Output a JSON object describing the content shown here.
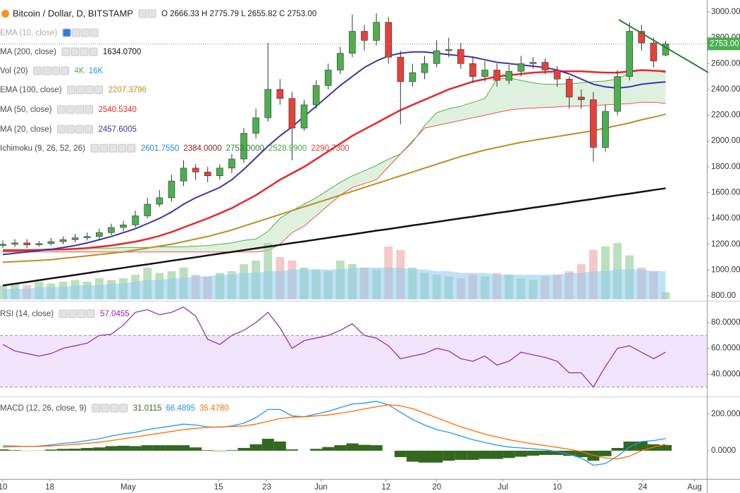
{
  "chart_data": {
    "type": "candlestick",
    "title": "Bitcoin / Dollar, D, BITSTAMP",
    "ohlc_readout": "O 2666.33 H 2775.79 L 2655.82 C 2753.00",
    "disabled_indicator": "EMA (10, close)",
    "xticks": [
      {
        "value": 0,
        "label": "10"
      },
      {
        "value": 3.9,
        "label": "18"
      },
      {
        "value": 10.4,
        "label": "May"
      },
      {
        "value": 17.9,
        "label": "15"
      },
      {
        "value": 21.9,
        "label": "23"
      },
      {
        "value": 26.4,
        "label": "Jun"
      },
      {
        "value": 31.8,
        "label": "12"
      },
      {
        "value": 36,
        "label": "20"
      },
      {
        "value": 41.5,
        "label": "Jul"
      },
      {
        "value": 46,
        "label": "10"
      },
      {
        "value": 53.1,
        "label": "24"
      },
      {
        "value": 57.4,
        "label": "Aug"
      }
    ],
    "ylim": [
      773,
      3082
    ],
    "yticks": [
      {
        "value": 800,
        "label": "800.00"
      },
      {
        "value": 1000,
        "label": "1000.00"
      },
      {
        "value": 1200,
        "label": "1200.00"
      },
      {
        "value": 1400,
        "label": "1400.00"
      },
      {
        "value": 1600,
        "label": "1600.00"
      },
      {
        "value": 1800,
        "label": "1800.00"
      },
      {
        "value": 2000,
        "label": "2000.00"
      },
      {
        "value": 2200,
        "label": "2200.00"
      },
      {
        "value": 2400,
        "label": "2400.00"
      },
      {
        "value": 2600,
        "label": "2600.00"
      },
      {
        "value": 2800,
        "label": "2800.00"
      },
      {
        "value": 3000,
        "label": "3000.00"
      }
    ],
    "grid": false,
    "up_color": "#4caf50",
    "down_color": "#e5413b",
    "candles": {
      "open": [
        1190,
        1200,
        1210,
        1195,
        1205,
        1220,
        1235,
        1250,
        1260,
        1290,
        1330,
        1350,
        1420,
        1510,
        1560,
        1690,
        1790,
        1760,
        1730,
        1790,
        1860,
        2060,
        2180,
        2400,
        2330,
        2100,
        2280,
        2430,
        2550,
        2680,
        2850,
        2780,
        2920,
        2650,
        2460,
        2530,
        2600,
        2700,
        2710,
        2600,
        2500,
        2550,
        2470,
        2540,
        2600,
        2610,
        2550,
        2480,
        2340,
        2320,
        1950,
        2230,
        2500,
        2850,
        2760,
        2666.33
      ],
      "high": [
        1230,
        1240,
        1240,
        1225,
        1250,
        1260,
        1280,
        1290,
        1320,
        1360,
        1380,
        1460,
        1560,
        1620,
        1740,
        1850,
        1820,
        1800,
        1820,
        1900,
        2100,
        2250,
        2760,
        2480,
        2380,
        2320,
        2470,
        2600,
        2730,
        2980,
        2900,
        2990,
        2960,
        2700,
        2600,
        2660,
        2780,
        2800,
        2760,
        2650,
        2620,
        2600,
        2590,
        2660,
        2650,
        2640,
        2580,
        2500,
        2400,
        2380,
        2280,
        2550,
        2920,
        2900,
        2800,
        2775.79
      ],
      "low": [
        1170,
        1180,
        1170,
        1180,
        1190,
        1200,
        1215,
        1230,
        1240,
        1270,
        1300,
        1330,
        1400,
        1490,
        1530,
        1650,
        1700,
        1680,
        1700,
        1750,
        1830,
        2020,
        2150,
        2280,
        1850,
        2080,
        2250,
        2400,
        2520,
        2650,
        2700,
        2740,
        2600,
        2130,
        2420,
        2480,
        2570,
        2650,
        2560,
        2450,
        2460,
        2420,
        2440,
        2500,
        2560,
        2520,
        2420,
        2250,
        2250,
        1840,
        1920,
        2200,
        2470,
        2700,
        2570,
        2655.82
      ],
      "close": [
        1200,
        1210,
        1195,
        1205,
        1220,
        1235,
        1250,
        1260,
        1290,
        1330,
        1350,
        1420,
        1510,
        1560,
        1690,
        1790,
        1760,
        1730,
        1790,
        1860,
        2060,
        2180,
        2400,
        2330,
        2100,
        2280,
        2430,
        2550,
        2680,
        2850,
        2780,
        2920,
        2650,
        2460,
        2530,
        2600,
        2700,
        2710,
        2600,
        2500,
        2550,
        2470,
        2540,
        2600,
        2610,
        2550,
        2480,
        2340,
        2320,
        1950,
        2230,
        2500,
        2850,
        2760,
        2620,
        2753.0
      ]
    },
    "last_price": {
      "value": 2753,
      "label": "2753.00",
      "color": "#4caf50"
    },
    "series": [
      {
        "name": "MA (200, close)",
        "color": "#111111",
        "width": 2.5,
        "readout": "1634.0700",
        "values": [
          880,
          894,
          907,
          921,
          935,
          948,
          962,
          976,
          990,
          1003,
          1017,
          1031,
          1044,
          1058,
          1072,
          1085,
          1099,
          1113,
          1127,
          1140,
          1154,
          1168,
          1181,
          1195,
          1209,
          1222,
          1236,
          1250,
          1264,
          1277,
          1291,
          1305,
          1318,
          1332,
          1346,
          1359,
          1373,
          1387,
          1401,
          1414,
          1428,
          1442,
          1455,
          1469,
          1483,
          1496,
          1510,
          1524,
          1538,
          1551,
          1565,
          1579,
          1592,
          1606,
          1620,
          1634
        ]
      },
      {
        "name": "EMA (100, close)",
        "color": "#c08a1e",
        "width": 2,
        "readout": "2207.3796",
        "values": [
          1060,
          1065,
          1070,
          1075,
          1080,
          1090,
          1100,
          1110,
          1120,
          1130,
          1140,
          1155,
          1170,
          1185,
          1200,
          1220,
          1240,
          1260,
          1285,
          1310,
          1340,
          1370,
          1400,
          1430,
          1460,
          1490,
          1520,
          1550,
          1580,
          1610,
          1640,
          1670,
          1700,
          1730,
          1760,
          1790,
          1820,
          1850,
          1880,
          1905,
          1930,
          1950,
          1970,
          1990,
          2005,
          2020,
          2035,
          2050,
          2065,
          2080,
          2100,
          2120,
          2140,
          2165,
          2185,
          2207
        ]
      },
      {
        "name": "MA (50, close)",
        "color": "#e8262b",
        "width": 2.5,
        "readout": "2540.5340",
        "values": [
          1150,
          1150,
          1152,
          1155,
          1158,
          1160,
          1165,
          1170,
          1180,
          1190,
          1205,
          1220,
          1240,
          1265,
          1295,
          1330,
          1365,
          1400,
          1440,
          1480,
          1530,
          1580,
          1640,
          1700,
          1750,
          1800,
          1860,
          1920,
          1980,
          2040,
          2090,
          2140,
          2190,
          2240,
          2280,
          2320,
          2360,
          2400,
          2430,
          2460,
          2480,
          2500,
          2510,
          2520,
          2530,
          2535,
          2540,
          2540,
          2540,
          2535,
          2530,
          2530,
          2540,
          2550,
          2545,
          2540
        ]
      },
      {
        "name": "MA (20, close)",
        "color": "#3b35a8",
        "width": 2,
        "readout": "2457.6005",
        "values": [
          1120,
          1130,
          1140,
          1150,
          1160,
          1175,
          1190,
          1210,
          1235,
          1260,
          1290,
          1320,
          1360,
          1400,
          1450,
          1510,
          1560,
          1600,
          1640,
          1700,
          1780,
          1870,
          1960,
          2040,
          2110,
          2190,
          2270,
          2350,
          2430,
          2500,
          2570,
          2620,
          2660,
          2680,
          2690,
          2690,
          2680,
          2670,
          2660,
          2650,
          2630,
          2610,
          2600,
          2590,
          2580,
          2570,
          2550,
          2520,
          2480,
          2440,
          2420,
          2410,
          2420,
          2440,
          2450,
          2458
        ]
      }
    ],
    "volume": {
      "name": "Vol (20)",
      "readouts": [
        "4K",
        "16K"
      ],
      "readout_colors": [
        "#4caf50",
        "#2196f3"
      ],
      "up_color": "#a5d6a7",
      "down_color": "#efb8b5",
      "ma_color": "#8ccaf0",
      "values": [
        8,
        9,
        8,
        10,
        9,
        10,
        11,
        10,
        12,
        11,
        12,
        14,
        18,
        15,
        16,
        18,
        14,
        13,
        15,
        16,
        20,
        22,
        32,
        24,
        22,
        18,
        17,
        16,
        22,
        20,
        18,
        17,
        30,
        28,
        18,
        15,
        14,
        13,
        12,
        14,
        13,
        15,
        14,
        12,
        11,
        13,
        14,
        16,
        20,
        28,
        30,
        32,
        25,
        18,
        16,
        4
      ],
      "ma": [
        6,
        6,
        6,
        7,
        7,
        7,
        8,
        8,
        8,
        9,
        9,
        10,
        11,
        11,
        12,
        12,
        13,
        13,
        14,
        14,
        15,
        15,
        16,
        16,
        17,
        17,
        17,
        17,
        17,
        18,
        18,
        18,
        18,
        18,
        17,
        17,
        16,
        16,
        15,
        15,
        15,
        14,
        14,
        14,
        14,
        14,
        14,
        15,
        15,
        16,
        16,
        17,
        17,
        17,
        16,
        16
      ]
    },
    "ichimoku": {
      "name": "Ichimoku (9, 26, 52, 26)",
      "readouts": [
        "2601.7550",
        "2384.0000",
        "2753.0000",
        "2528.9900",
        "2290.7300"
      ],
      "readout_colors": [
        "#1e88e5",
        "#8e1b1b",
        "#2e7d32",
        "#43a047",
        "#e53935"
      ],
      "span_a_color": "#4caf50",
      "span_b_color": "#ef5350",
      "cloud_color": "#b9dfb5",
      "span_a": [
        1160,
        1160,
        1160,
        1160,
        1165,
        1165,
        1165,
        1170,
        1170,
        1170,
        1175,
        1175,
        1175,
        1180,
        1180,
        1180,
        1185,
        1190,
        1200,
        1210,
        1230,
        1240,
        1300,
        1400,
        1460,
        1510,
        1560,
        1620,
        1680,
        1730,
        1770,
        1810,
        1860,
        1900,
        1990,
        2120,
        2220,
        2250,
        2270,
        2300,
        2330,
        2480,
        2490,
        2470,
        2450,
        2440,
        2440,
        2445,
        2450,
        2460,
        2465,
        2480,
        2530,
        2550,
        2550,
        2529
      ],
      "span_b": [
        1140,
        1140,
        1140,
        1140,
        1140,
        1140,
        1140,
        1140,
        1140,
        1140,
        1140,
        1140,
        1140,
        1140,
        1140,
        1140,
        1140,
        1140,
        1140,
        1140,
        1140,
        1140,
        1150,
        1200,
        1290,
        1340,
        1420,
        1500,
        1580,
        1640,
        1670,
        1700,
        1800,
        1900,
        2000,
        2100,
        2120,
        2140,
        2160,
        2180,
        2200,
        2220,
        2240,
        2250,
        2255,
        2260,
        2265,
        2270,
        2270,
        2275,
        2280,
        2285,
        2290,
        2300,
        2300,
        2291
      ]
    },
    "rsi": {
      "name": "RSI (14, close)",
      "readout": "57.0455",
      "color": "#8e24aa",
      "band_color": "#f1e4fb",
      "ylim": [
        23.2,
        95.3
      ],
      "yticks": [
        {
          "value": 40,
          "label": "40.0000"
        },
        {
          "value": 60,
          "label": "60.0000"
        },
        {
          "value": 80,
          "label": "80.0000"
        }
      ],
      "bands": [
        30,
        70
      ],
      "values": [
        63,
        58,
        56,
        54,
        56,
        60,
        62,
        64,
        70,
        71,
        78,
        88,
        90,
        86,
        88,
        92,
        85,
        67,
        63,
        70,
        74,
        80,
        88,
        76,
        60,
        66,
        68,
        70,
        74,
        79,
        70,
        68,
        62,
        52,
        54,
        56,
        60,
        58,
        52,
        50,
        54,
        47,
        50,
        57,
        55,
        53,
        50,
        41,
        41,
        30,
        46,
        60,
        62,
        57,
        52,
        57.0455
      ]
    },
    "macd": {
      "name": "MACD (12, 26, close, 9)",
      "readouts": [
        "31.0115",
        "66.4895",
        "35.4780"
      ],
      "hist_color": "#33691e",
      "macd_color": "#2196f3",
      "signal_color": "#ff6d00",
      "ylim": [
        -154,
        288
      ],
      "yticks": [
        {
          "value": 0,
          "label": "0.0000"
        },
        {
          "value": 200,
          "label": "200.0000"
        }
      ],
      "histogram": [
        7,
        3,
        -1,
        1,
        6,
        10,
        11,
        15,
        18,
        25,
        27,
        25,
        30,
        30,
        30,
        30,
        18,
        3,
        -2,
        3,
        15,
        35,
        65,
        50,
        7,
        0,
        10,
        20,
        30,
        40,
        32,
        30,
        0,
        -35,
        -60,
        -65,
        -65,
        -55,
        -50,
        -50,
        -45,
        -45,
        -40,
        -33,
        -27,
        -23,
        -23,
        -28,
        -35,
        -55,
        -30,
        15,
        50,
        50,
        35,
        31.0115
      ],
      "macd": [
        27,
        25,
        22,
        25,
        32,
        40,
        46,
        55,
        65,
        80,
        92,
        100,
        115,
        125,
        135,
        145,
        140,
        130,
        128,
        135,
        150,
        180,
        225,
        225,
        190,
        185,
        200,
        215,
        235,
        255,
        260,
        270,
        250,
        210,
        170,
        140,
        115,
        100,
        80,
        60,
        45,
        30,
        20,
        15,
        10,
        5,
        -5,
        -20,
        -40,
        -80,
        -70,
        -30,
        20,
        50,
        55,
        66.4895
      ],
      "signal": [
        20,
        22,
        23,
        24,
        26,
        30,
        35,
        40,
        47,
        55,
        65,
        75,
        85,
        95,
        105,
        115,
        122,
        127,
        130,
        132,
        135,
        145,
        160,
        175,
        183,
        185,
        190,
        195,
        205,
        215,
        228,
        240,
        250,
        245,
        230,
        205,
        180,
        155,
        130,
        110,
        90,
        75,
        60,
        48,
        37,
        28,
        18,
        8,
        -5,
        -25,
        -40,
        -45,
        -30,
        0,
        20,
        35.478
      ]
    }
  }
}
